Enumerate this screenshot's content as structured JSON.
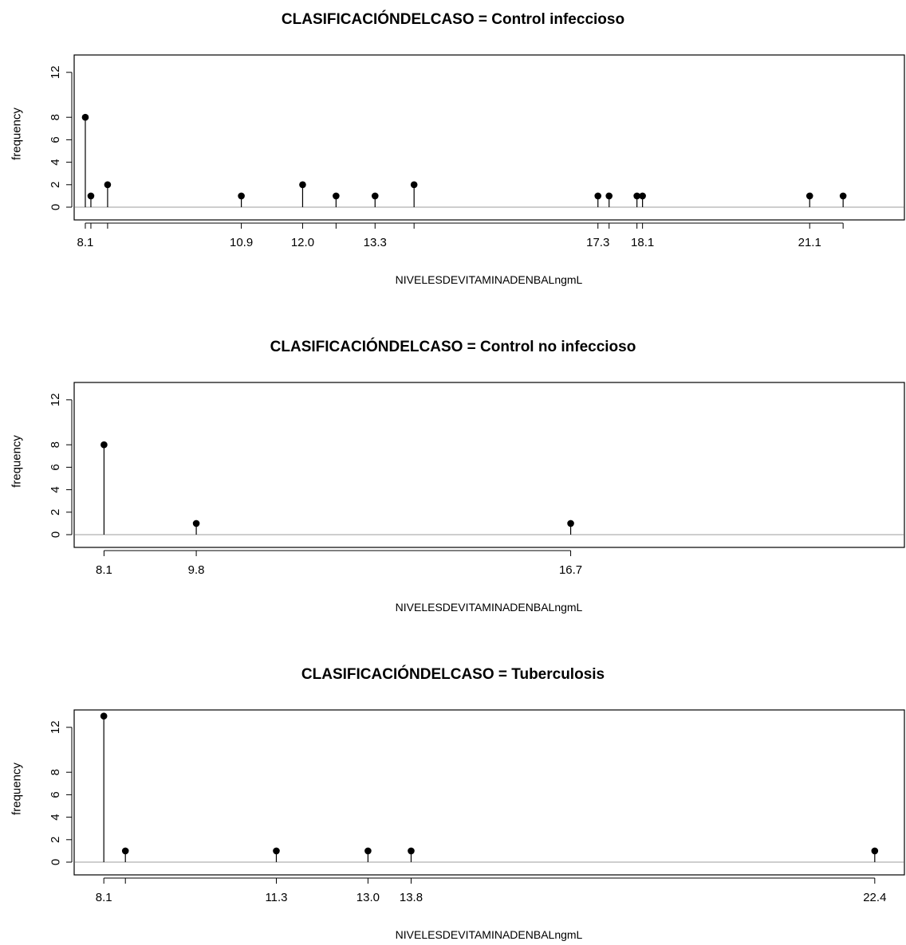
{
  "chart_data": [
    {
      "type": "scatter",
      "style": "lollipop",
      "title": "CLASIFICACIÓNDELCASO = Control infeccioso",
      "xlabel": "NIVELESDEVITAMINADENBALngmL",
      "ylabel": "frequency",
      "xlim": [
        7.9,
        22.8
      ],
      "ylim": [
        0,
        13
      ],
      "yticks": [
        0,
        2,
        4,
        6,
        8,
        12
      ],
      "xtick_labels": [
        "8.1",
        "10.9",
        "12.0",
        "13.3",
        "17.3",
        "18.1",
        "21.1"
      ],
      "x": [
        8.1,
        8.2,
        8.5,
        10.9,
        12.0,
        12.6,
        13.3,
        14.0,
        17.3,
        17.5,
        18.0,
        18.1,
        21.1,
        21.7
      ],
      "y": [
        8,
        1,
        2,
        1,
        2,
        1,
        1,
        2,
        1,
        1,
        1,
        1,
        1,
        1
      ]
    },
    {
      "type": "scatter",
      "style": "lollipop",
      "title": "CLASIFICACIÓNDELCASO = Control no infeccioso",
      "xlabel": "NIVELESDEVITAMINADENBALngmL",
      "ylabel": "frequency",
      "xlim": [
        7.55,
        22.85
      ],
      "ylim": [
        0,
        13
      ],
      "yticks": [
        0,
        2,
        4,
        6,
        8,
        12
      ],
      "xtick_labels": [
        "8.1",
        "9.8",
        "16.7"
      ],
      "x": [
        8.1,
        9.8,
        16.7
      ],
      "y": [
        8,
        1,
        1
      ]
    },
    {
      "type": "scatter",
      "style": "lollipop",
      "title": "CLASIFICACIÓNDELCASO = Tuberculosis",
      "xlabel": "NIVELESDEVITAMINADENBALngmL",
      "ylabel": "frequency",
      "xlim": [
        7.55,
        22.95
      ],
      "ylim": [
        0,
        13
      ],
      "yticks": [
        0,
        2,
        4,
        6,
        8,
        12
      ],
      "xtick_labels": [
        "8.1",
        "11.3",
        "13.0",
        "13.8",
        "22.4"
      ],
      "x": [
        8.1,
        8.5,
        11.3,
        13.0,
        13.8,
        22.4
      ],
      "y": [
        13,
        1,
        1,
        1,
        1,
        1
      ]
    }
  ]
}
